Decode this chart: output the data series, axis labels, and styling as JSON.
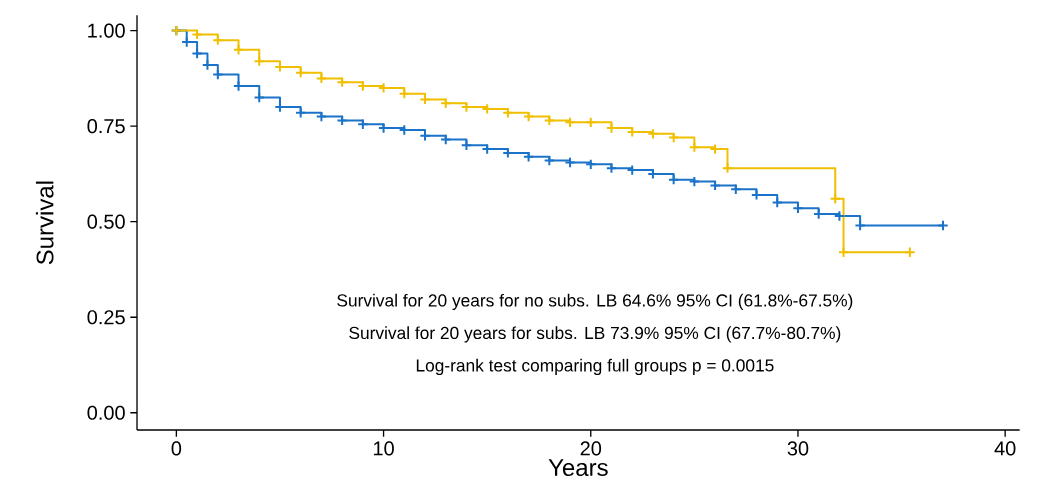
{
  "chart_data": {
    "type": "step",
    "xlabel": "Years",
    "ylabel": "Survival",
    "xlim": [
      -1.9,
      40.7
    ],
    "ylim": [
      -0.045,
      1.04
    ],
    "xticks": [
      0,
      10,
      20,
      30,
      40
    ],
    "yticks": [
      {
        "value": 0,
        "label": "0.00"
      },
      {
        "value": 0.25,
        "label": "0.25"
      },
      {
        "value": 0.5,
        "label": "0.50"
      },
      {
        "value": 0.75,
        "label": "0.75"
      },
      {
        "value": 1,
        "label": "1.00"
      }
    ],
    "grid": false,
    "marker": "cross",
    "line_style": "solid",
    "series": [
      {
        "color": "#1a73c8",
        "x": [
          0,
          0.5,
          1,
          1.5,
          2,
          3,
          4,
          5,
          6,
          7,
          8,
          9,
          10,
          11,
          12,
          13,
          14,
          15,
          16,
          17,
          18,
          19,
          20,
          21,
          22,
          23,
          24,
          25,
          26,
          27,
          28,
          29,
          30,
          31,
          32,
          33,
          37
        ],
        "values": [
          1.0,
          0.97,
          0.94,
          0.91,
          0.885,
          0.855,
          0.825,
          0.8,
          0.785,
          0.775,
          0.765,
          0.755,
          0.745,
          0.74,
          0.725,
          0.715,
          0.7,
          0.69,
          0.68,
          0.67,
          0.66,
          0.655,
          0.65,
          0.64,
          0.635,
          0.625,
          0.61,
          0.605,
          0.595,
          0.585,
          0.57,
          0.55,
          0.535,
          0.52,
          0.515,
          0.49,
          0.49
        ]
      },
      {
        "color": "#f0c000",
        "x": [
          0,
          1,
          2,
          3,
          4,
          5,
          6,
          7,
          8,
          9,
          10,
          11,
          12,
          13,
          14,
          15,
          16,
          17,
          18,
          19,
          20,
          21,
          22,
          23,
          24,
          25,
          26,
          26.6,
          31.8,
          32.2,
          35.4
        ],
        "values": [
          1.0,
          0.99,
          0.975,
          0.95,
          0.92,
          0.905,
          0.89,
          0.875,
          0.865,
          0.855,
          0.85,
          0.835,
          0.82,
          0.81,
          0.8,
          0.795,
          0.785,
          0.775,
          0.765,
          0.76,
          0.76,
          0.745,
          0.735,
          0.73,
          0.72,
          0.695,
          0.69,
          0.64,
          0.56,
          0.42,
          0.42
        ]
      }
    ],
    "annotations": [
      "Survival for 20 years for no subs. LB 64.6% 95% CI (61.8%-67.5%)",
      "Survival for 20 years for subs. LB 73.9% 95% CI (67.7%-80.7%)",
      "Log-rank test comparing full groups p = 0.0015"
    ]
  }
}
